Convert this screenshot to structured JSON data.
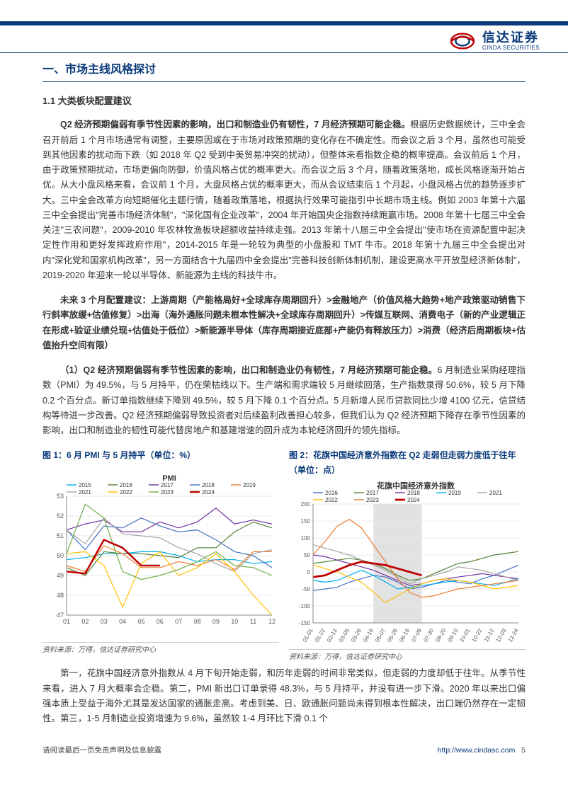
{
  "header": {
    "logo_cn": "信达证券",
    "logo_en": "CINDA SECURITIES"
  },
  "section": {
    "title": "一、市场主线风格探讨",
    "sub1": "1.1  大类板块配置建议"
  },
  "paragraphs": {
    "p1_lead": "Q2 经济预期偏弱有季节性因素的影响，出口和制造业仍有韧性，7 月经济预期可能企稳。",
    "p1_body": "根据历史数据统计，三中全会召开前后 1 个月市场通常有调整，主要原因或在于市场对政策预期的变化存在不确定性。而会议之后 3 个月，虽然也可能受到其他因素的扰动而下跌（如 2018 年 Q2 受到中美贸易冲突的扰动），但整体来看指数企稳的概率提高。会议前后 1 个月，由于政策预期扰动，市场更偏向防御，价值风格占优的概率更大。而会议之后 3 个月，随着政策落地，成长风格逐渐开始占优。从大小盘风格来看，会议前 1 个月，大盘风格占优的概率更大，而从会议结束后 1 个月起，小盘风格占优的趋势逐步扩大。三中全会改革方向短期催化主题行情，随着政策落地，根据执行效果可能指引中长期市场主线。例如 2003 年第十六届三中全会提出\"完善市场经济体制\"，\"深化国有企业改革\"，2004 年开始国央企指数持续跑赢市场。2008 年第十七届三中全会关注\"三农问题\"，2009-2010 年农林牧渔板块超额收益持续走强。2013 年第十八届三中全会提出\"使市场在资源配置中起决定性作用和更好发挥政府作用\"，2014-2015 年是一轮较为典型的小盘股和 TMT 牛市。2018 年第十九届三中全会提出对内\"深化党和国家机构改革\"，另一方面结合十九届四中全会提出\"完善科技创新体制机制，建设更高水平开放型经济新体制\"，2019-2020 年迎来一轮以半导体、新能源为主线的科技牛市。",
    "p2_lead": "未来 3 个月配置建议：上游周期（产能格局好+全球库存周期回升）>金融地产（价值风格大趋势+地产政策驱动销售下行斜率放缓+估值修复）>出海（海外通胀问题未根本性解决+全球库存周期回升）>传媒互联网、消费电子（新的产业逻辑正在形成+验证业绩兑现+估值处于低位）>新能源半导体（库存周期接近底部+产能仍有释放压力）>消费（经济后周期板块+估值抬升空间有限）",
    "p3_lead": "（1）Q2 经济预期偏弱有季节性因素的影响，出口和制造业仍有韧性，7 月经济预期可能企稳。",
    "p3_body": "6 月制造业采购经理指数（PMI）为 49.5%，与 5 月持平，仍在荣枯线以下。生产端和需求端较 5 月继续回落，生产指数录得 50.6%，较 5 月下降 0.2 个百分点。新订单指数继续下降到 49.5%，较 5 月下降 0.1 个百分点。5 月新增人民币贷款同比少增 4100 亿元，信贷结构等待进一步改善。Q2 经济预期偏弱导致投资者对后续盈利改善担心较多，但我们认为 Q2 经济预期下降存在季节性因素的影响，出口和制造业的韧性可能代替房地产和基建增速的回升成为本轮经济回升的领先指标。",
    "p4": "第一，花旗中国经济意外指数从 4 月下旬开始走弱，和历年走弱的时间非常类似，但走弱的力度却低于往年。从季节性来看，进入 7 月大概率会企稳。第二，PMI 新出口订单录得 48.3%，与 5 月持平，并没有进一步下滑。2020 年以来出口偏强本质上受益于海外尤其是发达国家的通胀走高。考虑到美、日、欧通胀问题尚未得到根本性解决，出口端仍然存在一定韧性。第三，1-5 月制造业投资增速为 9.6%，虽然较 1-4 月环比下滑 0.1 个"
  },
  "chart1": {
    "title": "图 1：6 月 PMI 与 5 月持平（单位：%）",
    "inner_title": "PMI",
    "source": "资料来源：万得，信达证券研究中心",
    "type": "line",
    "categories": [
      "01",
      "02",
      "03",
      "04",
      "05",
      "06",
      "07",
      "08",
      "09",
      "10",
      "11",
      "12"
    ],
    "ylim": [
      47,
      53
    ],
    "ytick_step": 1,
    "series": [
      {
        "name": "2015",
        "color": "#00b0f0",
        "values": [
          49.8,
          49.9,
          50.1,
          50.1,
          50.2,
          50.2,
          50.0,
          49.7,
          49.8,
          49.8,
          49.6,
          49.7
        ]
      },
      {
        "name": "2016",
        "color": "#548235",
        "values": [
          49.4,
          49.0,
          50.2,
          50.1,
          50.1,
          50.0,
          49.9,
          50.4,
          50.4,
          51.2,
          51.7,
          51.4
        ]
      },
      {
        "name": "2017",
        "color": "#7030a0",
        "values": [
          51.3,
          51.6,
          51.8,
          51.2,
          51.2,
          51.7,
          51.4,
          51.7,
          52.4,
          51.6,
          51.8,
          51.6
        ]
      },
      {
        "name": "2018",
        "color": "#4472c4",
        "values": [
          51.3,
          50.3,
          51.5,
          51.4,
          51.9,
          51.5,
          51.2,
          51.3,
          50.8,
          50.2,
          50.0,
          49.4
        ]
      },
      {
        "name": "2019",
        "color": "#ed7d31",
        "values": [
          49.5,
          49.2,
          50.5,
          50.1,
          49.4,
          49.4,
          49.7,
          49.5,
          49.8,
          49.3,
          50.2,
          50.2
        ]
      },
      {
        "name": "2021",
        "color": "#a5a5a5",
        "values": [
          51.3,
          50.6,
          51.9,
          51.1,
          51.0,
          50.9,
          50.4,
          50.1,
          49.6,
          49.2,
          50.1,
          50.3
        ]
      },
      {
        "name": "2022",
        "color": "#ffc000",
        "values": [
          50.1,
          50.2,
          49.5,
          47.4,
          49.6,
          50.2,
          49.0,
          49.4,
          50.1,
          49.2,
          48.0,
          47.0
        ]
      },
      {
        "name": "2023",
        "color": "#70ad47",
        "values": [
          50.1,
          52.6,
          51.9,
          49.2,
          48.8,
          49.0,
          49.3,
          49.7,
          50.2,
          49.5,
          49.4,
          49.0
        ]
      },
      {
        "name": "2024",
        "color": "#c00000",
        "values": [
          49.2,
          49.1,
          50.8,
          50.4,
          49.5,
          49.5,
          null,
          null,
          null,
          null,
          null,
          null
        ],
        "width": 2.5
      }
    ],
    "background_color": "#ffffff",
    "grid_color": "#e8e8e8",
    "title_fontsize": 12,
    "axis_fontsize": 9,
    "legend_fontsize": 8
  },
  "chart2": {
    "title": "图 2：花旗中国经济意外指数在 Q2 走弱但走弱力度低于往年（单位：点）",
    "inner_title": "花旗中国经济意外指数",
    "source": "资料来源：万得，信达证券研究中心",
    "type": "line",
    "categories": [
      "01-01",
      "01-22",
      "02-12",
      "03-05",
      "03-26",
      "04-16",
      "05-07",
      "05-28",
      "06-18",
      "07-09",
      "07-30",
      "08-20",
      "09-10",
      "10-01",
      "10-22",
      "11-12",
      "12-03",
      "12-24"
    ],
    "ylim": [
      -150,
      200
    ],
    "ytick_step": 50,
    "shaded_region": {
      "start": "04-16",
      "end": "07-09",
      "color": "#bfbfbf",
      "opacity": 0.45
    },
    "series": [
      {
        "name": "2016",
        "color": "#4472c4",
        "values": [
          -55,
          -50,
          -45,
          -30,
          -20,
          -10,
          -15,
          -30,
          -50,
          -45,
          -35,
          -25,
          -30,
          -35,
          -20,
          -10,
          5,
          20
        ]
      },
      {
        "name": "2017",
        "color": "#548235",
        "values": [
          25,
          30,
          35,
          40,
          35,
          25,
          10,
          -10,
          -25,
          -20,
          -5,
          10,
          25,
          30,
          40,
          50,
          55,
          60
        ]
      },
      {
        "name": "2018",
        "color": "#7030a0",
        "values": [
          50,
          45,
          35,
          25,
          15,
          5,
          -10,
          -25,
          -40,
          -35,
          -25,
          -20,
          -15,
          -10,
          -5,
          -10,
          -15,
          -20
        ]
      },
      {
        "name": "2019",
        "color": "#00b0f0",
        "values": [
          -25,
          -30,
          -25,
          -10,
          5,
          -10,
          -30,
          -50,
          -45,
          -40,
          -35,
          -30,
          -25,
          -30,
          -35,
          -40,
          -30,
          -20
        ]
      },
      {
        "name": "2021",
        "color": "#a5a5a5",
        "values": [
          80,
          70,
          60,
          50,
          35,
          20,
          5,
          -15,
          -35,
          -20,
          -10,
          0,
          15,
          10,
          5,
          -5,
          -15,
          -25
        ]
      },
      {
        "name": "2022",
        "color": "#ffc000",
        "values": [
          20,
          10,
          0,
          -15,
          -30,
          -60,
          -90,
          -70,
          -50,
          -35,
          -25,
          -20,
          -25,
          -30,
          -40,
          -50,
          -45,
          -40
        ]
      },
      {
        "name": "2023",
        "color": "#ed7d31",
        "values": [
          50,
          90,
          135,
          155,
          130,
          80,
          30,
          -20,
          -60,
          -75,
          -70,
          -60,
          -50,
          -45,
          -40,
          -35,
          -30,
          -25
        ]
      },
      {
        "name": "2024",
        "color": "#c00000",
        "values": [
          -15,
          -10,
          5,
          20,
          30,
          25,
          20,
          10,
          0,
          -10,
          null,
          null,
          null,
          null,
          null,
          null,
          null,
          null
        ],
        "width": 2.8
      }
    ],
    "background_color": "#ffffff",
    "grid_color": "#e8e8e8",
    "title_fontsize": 12,
    "axis_fontsize": 8,
    "legend_fontsize": 8
  },
  "footer": {
    "disclaimer": "请阅读最后一页免责声明及信息披露",
    "url": "http://www.cindasc.com",
    "page": "5"
  }
}
